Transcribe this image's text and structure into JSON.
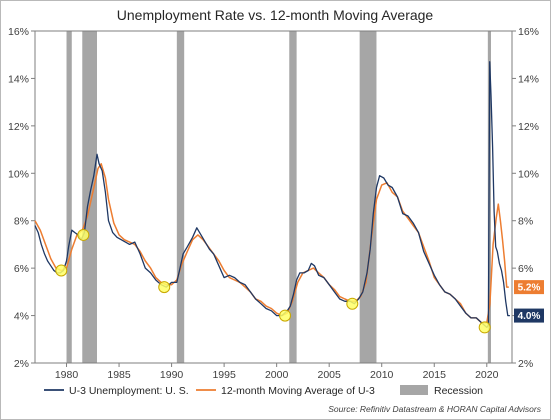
{
  "chart_data": {
    "type": "line",
    "title": "Unemployment Rate vs. 12-month Moving Average",
    "xlabel": "",
    "ylabel": "",
    "xlim": [
      1977.0,
      2022.4
    ],
    "ylim": [
      2,
      16
    ],
    "x_ticks": [
      1980,
      1985,
      1990,
      1995,
      2000,
      2005,
      2010,
      2015,
      2020
    ],
    "y_ticks": [
      "2%",
      "4%",
      "6%",
      "8%",
      "10%",
      "12%",
      "14%",
      "16%"
    ],
    "y_tick_values": [
      2,
      4,
      6,
      8,
      10,
      12,
      14,
      16
    ],
    "grid": false,
    "colors": {
      "u3": "#1f3864",
      "ma": "#ed7d31",
      "recession": "#a6a6a6",
      "marker_fill": "#ffff66",
      "marker_stroke": "#c9a800",
      "axis": "#7f7f7f"
    },
    "recessions": [
      [
        1980.0,
        1980.5
      ],
      [
        1981.5,
        1982.9
      ],
      [
        1990.5,
        1991.2
      ],
      [
        2001.2,
        2001.9
      ],
      [
        2007.9,
        2009.5
      ],
      [
        2020.1,
        2020.4
      ]
    ],
    "series": [
      {
        "name": "U-3 Unemployment: U. S.",
        "key": "u3",
        "x": [
          1977.0,
          1977.3,
          1977.6,
          1977.9,
          1978.2,
          1978.5,
          1978.8,
          1979.1,
          1979.4,
          1979.7,
          1980.0,
          1980.2,
          1980.5,
          1980.8,
          1981.1,
          1981.4,
          1981.7,
          1982.0,
          1982.3,
          1982.6,
          1982.9,
          1983.1,
          1983.4,
          1983.7,
          1984.0,
          1984.4,
          1984.8,
          1985.2,
          1985.6,
          1986.0,
          1986.5,
          1987.0,
          1987.5,
          1988.0,
          1988.5,
          1989.0,
          1989.5,
          1990.0,
          1990.5,
          1990.8,
          1991.1,
          1991.5,
          1992.0,
          1992.4,
          1992.8,
          1993.2,
          1993.6,
          1994.0,
          1994.5,
          1995.0,
          1995.5,
          1996.0,
          1996.5,
          1997.0,
          1997.5,
          1998.0,
          1998.5,
          1999.0,
          1999.5,
          2000.0,
          2000.5,
          2001.0,
          2001.3,
          2001.6,
          2001.9,
          2002.2,
          2002.6,
          2003.0,
          2003.3,
          2003.6,
          2004.0,
          2004.5,
          2005.0,
          2005.5,
          2006.0,
          2006.5,
          2007.0,
          2007.4,
          2007.8,
          2008.2,
          2008.6,
          2008.9,
          2009.2,
          2009.5,
          2009.8,
          2010.2,
          2010.6,
          2011.0,
          2011.5,
          2012.0,
          2012.5,
          2013.0,
          2013.5,
          2014.0,
          2014.5,
          2015.0,
          2015.5,
          2016.0,
          2016.5,
          2017.0,
          2017.5,
          2018.0,
          2018.5,
          2019.0,
          2019.5,
          2020.0,
          2020.15,
          2020.28,
          2020.4,
          2020.55,
          2020.7,
          2020.85,
          2021.0,
          2021.2,
          2021.4,
          2021.6,
          2021.8,
          2022.0,
          2022.2
        ],
        "values": [
          7.8,
          7.5,
          7.0,
          6.6,
          6.3,
          6.1,
          5.9,
          5.8,
          5.8,
          5.9,
          6.3,
          6.9,
          7.6,
          7.5,
          7.4,
          7.2,
          7.5,
          8.6,
          9.3,
          9.9,
          10.8,
          10.4,
          10.1,
          9.2,
          8.0,
          7.5,
          7.3,
          7.2,
          7.1,
          7.0,
          7.1,
          6.6,
          6.0,
          5.8,
          5.5,
          5.3,
          5.2,
          5.4,
          5.4,
          6.0,
          6.6,
          6.9,
          7.3,
          7.7,
          7.4,
          7.1,
          6.8,
          6.6,
          6.1,
          5.6,
          5.7,
          5.6,
          5.4,
          5.3,
          5.0,
          4.7,
          4.5,
          4.3,
          4.2,
          4.0,
          4.0,
          4.2,
          4.4,
          4.9,
          5.5,
          5.8,
          5.8,
          5.9,
          6.2,
          6.1,
          5.7,
          5.6,
          5.3,
          5.0,
          4.7,
          4.6,
          4.6,
          4.5,
          4.7,
          5.0,
          5.8,
          6.8,
          8.3,
          9.4,
          9.9,
          9.8,
          9.5,
          9.4,
          9.0,
          8.3,
          8.2,
          7.9,
          7.5,
          6.7,
          6.2,
          5.7,
          5.3,
          5.0,
          4.9,
          4.7,
          4.4,
          4.1,
          3.9,
          3.9,
          3.7,
          3.5,
          3.6,
          14.7,
          13.3,
          11.1,
          8.4,
          6.9,
          6.7,
          6.2,
          5.9,
          5.4,
          4.6,
          4.0,
          4.0
        ]
      },
      {
        "name": "12-month Moving Average of U-3",
        "key": "ma",
        "x": [
          1977.0,
          1977.5,
          1978.0,
          1978.5,
          1979.0,
          1979.5,
          1980.0,
          1980.5,
          1981.0,
          1981.5,
          1982.0,
          1982.5,
          1983.0,
          1983.3,
          1983.7,
          1984.0,
          1984.5,
          1985.0,
          1985.5,
          1986.0,
          1986.5,
          1987.0,
          1987.5,
          1988.0,
          1988.5,
          1989.0,
          1989.5,
          1990.0,
          1990.5,
          1991.0,
          1991.5,
          1992.0,
          1992.5,
          1993.0,
          1993.5,
          1994.0,
          1994.5,
          1995.0,
          1995.5,
          1996.0,
          1996.5,
          1997.0,
          1997.5,
          1998.0,
          1998.5,
          1999.0,
          1999.5,
          2000.0,
          2000.5,
          2001.0,
          2001.5,
          2002.0,
          2002.5,
          2003.0,
          2003.5,
          2004.0,
          2004.5,
          2005.0,
          2005.5,
          2006.0,
          2006.5,
          2007.0,
          2007.5,
          2008.0,
          2008.5,
          2009.0,
          2009.5,
          2010.0,
          2010.5,
          2011.0,
          2011.5,
          2012.0,
          2012.5,
          2013.0,
          2013.5,
          2014.0,
          2014.5,
          2015.0,
          2015.5,
          2016.0,
          2016.5,
          2017.0,
          2017.5,
          2018.0,
          2018.5,
          2019.0,
          2019.5,
          2020.0,
          2020.3,
          2020.6,
          2020.9,
          2021.1,
          2021.3,
          2021.5,
          2021.7,
          2021.9,
          2022.1
        ],
        "values": [
          8.0,
          7.6,
          7.0,
          6.4,
          6.0,
          5.9,
          6.0,
          6.8,
          7.4,
          7.6,
          8.2,
          9.2,
          10.2,
          10.4,
          9.8,
          8.9,
          7.9,
          7.4,
          7.2,
          7.1,
          7.0,
          6.7,
          6.3,
          6.0,
          5.6,
          5.4,
          5.3,
          5.3,
          5.5,
          6.2,
          6.7,
          7.2,
          7.4,
          7.2,
          6.9,
          6.6,
          6.3,
          5.9,
          5.6,
          5.5,
          5.4,
          5.2,
          5.0,
          4.7,
          4.6,
          4.4,
          4.3,
          4.1,
          4.0,
          4.1,
          4.6,
          5.4,
          5.8,
          5.9,
          6.0,
          5.8,
          5.6,
          5.3,
          5.1,
          4.8,
          4.7,
          4.6,
          4.6,
          4.8,
          5.4,
          7.2,
          8.9,
          9.5,
          9.6,
          9.2,
          9.0,
          8.4,
          8.1,
          7.8,
          7.5,
          6.9,
          6.3,
          5.6,
          5.3,
          5.0,
          4.9,
          4.7,
          4.5,
          4.1,
          3.9,
          3.9,
          3.7,
          3.7,
          4.5,
          7.0,
          8.1,
          8.7,
          8.0,
          7.2,
          6.3,
          5.2,
          5.2
        ]
      }
    ],
    "end_labels": [
      {
        "text": "5.2%",
        "value": 5.2,
        "key": "ma"
      },
      {
        "text": "4.0%",
        "value": 4.0,
        "key": "u3"
      }
    ],
    "markers": [
      {
        "x": 1979.5,
        "y": 5.9
      },
      {
        "x": 1981.6,
        "y": 7.4
      },
      {
        "x": 1989.3,
        "y": 5.2
      },
      {
        "x": 2000.8,
        "y": 4.0
      },
      {
        "x": 2007.2,
        "y": 4.5
      },
      {
        "x": 2019.8,
        "y": 3.5
      }
    ],
    "legend": {
      "placement": "bottom",
      "items": [
        {
          "label": "U-3 Unemployment: U. S.",
          "key": "u3",
          "shape": "line"
        },
        {
          "label": "12-month Moving Average of U-3",
          "key": "ma",
          "shape": "line"
        },
        {
          "label": "Recession",
          "key": "recession",
          "shape": "box"
        }
      ]
    },
    "source": "Source: Refinitiv Datastream & HORAN Capital Advisors"
  }
}
